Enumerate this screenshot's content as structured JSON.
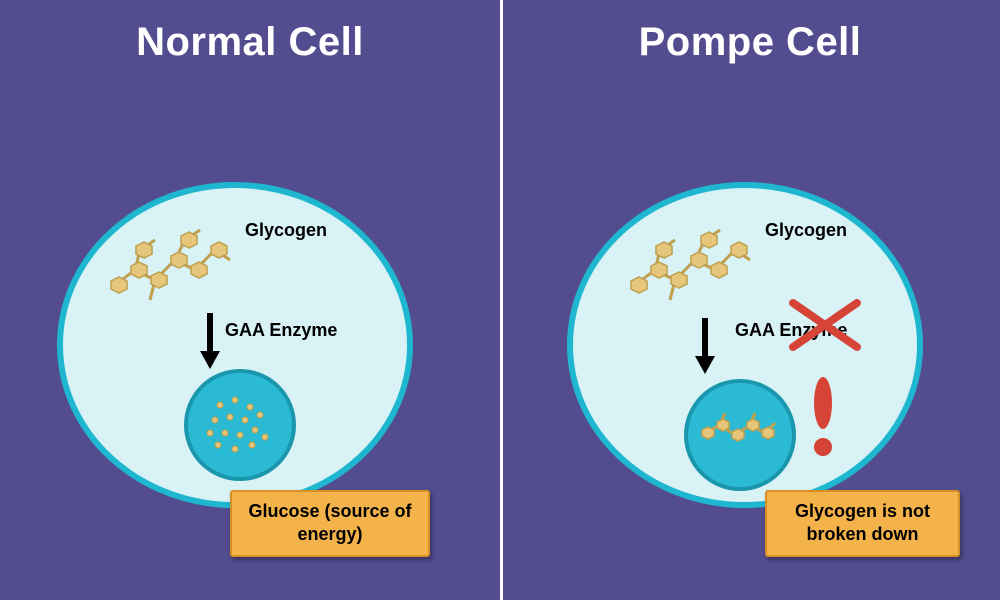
{
  "type": "infographic",
  "background_color": "#534c8f",
  "divider_color": "#ffffff",
  "title_color": "#ffffff",
  "title_fontsize": 40,
  "label_color": "#000000",
  "label_fontsize": 18,
  "caption_bg": "#f3b24a",
  "caption_border": "#d69024",
  "caption_text_color": "#000000",
  "caption_fontsize": 18,
  "cell": {
    "outer_fill": "#d8f2f6",
    "outer_stroke": "#1fb7cf",
    "outer_stroke_width": 6,
    "organelle_fill": "#2abad4",
    "organelle_stroke": "#1a97ad",
    "organelle_stroke_width": 4
  },
  "glycogen_color": "#e6c67a",
  "glycogen_stroke": "#bfa04f",
  "arrow_color": "#000000",
  "cross_color": "#d54436",
  "exclaim_color": "#d54436",
  "left": {
    "title": "Normal Cell",
    "glycogen_label": "Glycogen",
    "enzyme_label": "GAA Enzyme",
    "caption": "Glucose (source of energy)"
  },
  "right": {
    "title": "Pompe Cell",
    "glycogen_label": "Glycogen",
    "enzyme_label": "GAA Enzyme",
    "caption": "Glycogen is not broken down"
  }
}
